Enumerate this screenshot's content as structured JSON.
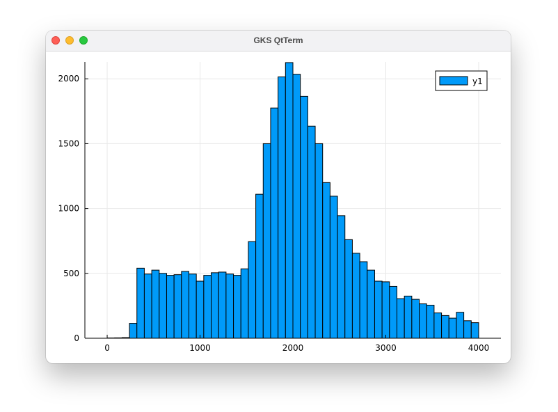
{
  "window": {
    "title": "GKS QtTerm",
    "controls": [
      "close",
      "minimize",
      "zoom"
    ]
  },
  "chart_data": {
    "type": "bar",
    "title": "",
    "xlabel": "",
    "ylabel": "",
    "bin_width": 80,
    "bin_edges_start": 0,
    "xlim": [
      -240,
      4240
    ],
    "ylim": [
      0,
      2130
    ],
    "xticks": [
      0,
      1000,
      2000,
      3000,
      4000
    ],
    "yticks": [
      0,
      500,
      1000,
      1500,
      2000
    ],
    "grid": true,
    "legend": {
      "position": "top-right",
      "entries": [
        "y1"
      ]
    },
    "series": [
      {
        "name": "y1",
        "color": "#009af9",
        "values": [
          2,
          3,
          5,
          115,
          540,
          495,
          525,
          500,
          485,
          490,
          515,
          495,
          440,
          485,
          505,
          510,
          495,
          485,
          535,
          745,
          1110,
          1500,
          1775,
          2015,
          2125,
          2035,
          1865,
          1635,
          1500,
          1200,
          1095,
          945,
          760,
          655,
          590,
          525,
          440,
          435,
          400,
          305,
          325,
          300,
          265,
          255,
          195,
          175,
          155,
          200,
          135,
          120
        ]
      }
    ]
  }
}
